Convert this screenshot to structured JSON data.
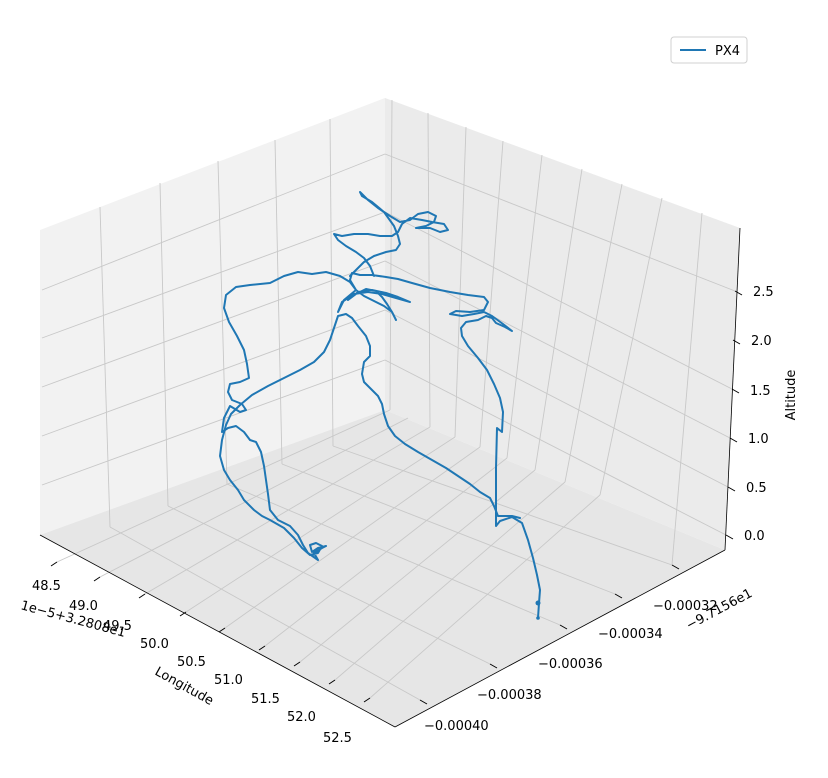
{
  "chart_data": {
    "type": "line",
    "projection": "3d",
    "legend": {
      "placement": "top-right",
      "entries": [
        "PX4"
      ]
    },
    "grid": true,
    "axes": {
      "x": {
        "label": "Longitude",
        "offset_text": "1e−5+3.2808e1",
        "ticks": [
          "48.5",
          "49.0",
          "49.5",
          "50.0",
          "50.5",
          "51.0",
          "51.5",
          "52.0",
          "52.5"
        ]
      },
      "y": {
        "label": "",
        "offset_text": "−9.7156e1",
        "ticks": [
          "−0.00032",
          "−0.00034",
          "−0.00036",
          "−0.00038",
          "−0.00040"
        ]
      },
      "z": {
        "label": "Altitude",
        "range": [
          -0.15,
          3.0
        ],
        "ticks": [
          "0.0",
          "0.5",
          "1.0",
          "1.5",
          "2.0",
          "2.5"
        ]
      }
    },
    "series": [
      {
        "name": "PX4",
        "color": "#1f77b4"
      }
    ]
  }
}
